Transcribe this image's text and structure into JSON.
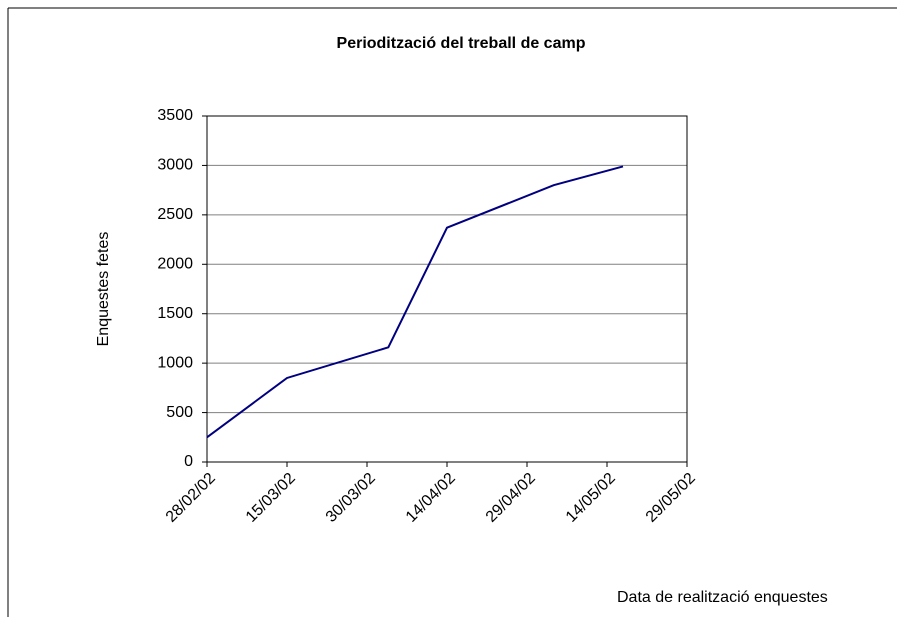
{
  "chart_data": {
    "type": "line",
    "title": "Periodització del treball de camp",
    "x_label": "Data de realització enquestes",
    "y_label": "Enquestes fetes",
    "x": [
      "28/02/02",
      "15/03/02",
      "03/04/02",
      "14/04/02",
      "04/05/02",
      "17/05/02"
    ],
    "series": [
      {
        "name": "Enquestes fetes",
        "color": "#000080",
        "values": [
          250,
          850,
          1160,
          2370,
          2800,
          2990
        ]
      }
    ],
    "xlim": [
      "28/02/02",
      "29/05/02"
    ],
    "xticks": [
      "28/02/02",
      "15/03/02",
      "30/03/02",
      "14/04/02",
      "29/04/02",
      "14/05/02",
      "29/05/02"
    ],
    "ylim": [
      0,
      3500
    ],
    "yticks": [
      0,
      500,
      1000,
      1500,
      2000,
      2500,
      3000,
      3500
    ],
    "grid": true
  }
}
